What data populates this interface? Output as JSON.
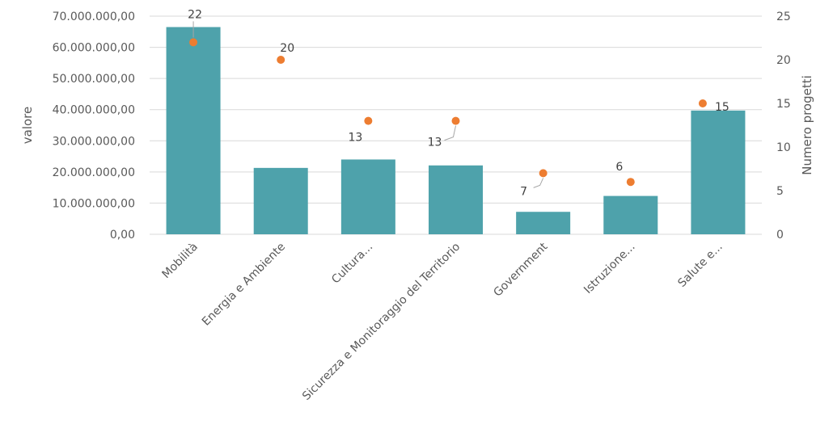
{
  "chart_data": {
    "type": "bar",
    "categories": [
      "Mobilità",
      "Energia e Ambiente",
      "Cultura...",
      "Sicurezza e Monitoraggio del Territorio",
      "Government",
      "Istruzione...",
      "Salute e..."
    ],
    "series": [
      {
        "name": "",
        "type": "bar",
        "axis": "left",
        "values": [
          66500000,
          21300000,
          24000000,
          22100000,
          7200000,
          12300000,
          39700000
        ]
      },
      {
        "name": "",
        "type": "scatter",
        "axis": "right",
        "values": [
          22,
          20,
          13,
          13,
          7,
          6,
          15
        ]
      }
    ],
    "ylabel_left": "valore",
    "ylabel_right": "Numero progetti",
    "ylim_left": [
      0,
      70000000
    ],
    "ylim_right": [
      0,
      25
    ],
    "yticks_left": [
      "0,00",
      "10.000.000,00",
      "20.000.000,00",
      "30.000.000,00",
      "40.000.000,00",
      "50.000.000,00",
      "60.000.000,00",
      "70.000.000,00"
    ],
    "yticks_right": [
      "0",
      "5",
      "10",
      "15",
      "20",
      "25"
    ],
    "point_labels": [
      "22",
      "20",
      "13",
      "13",
      "7",
      "6",
      "15"
    ],
    "grid": true,
    "colors": {
      "bar": "#4ea2ab",
      "point": "#ed7d31",
      "label_highlight": "#ed7d31"
    }
  }
}
